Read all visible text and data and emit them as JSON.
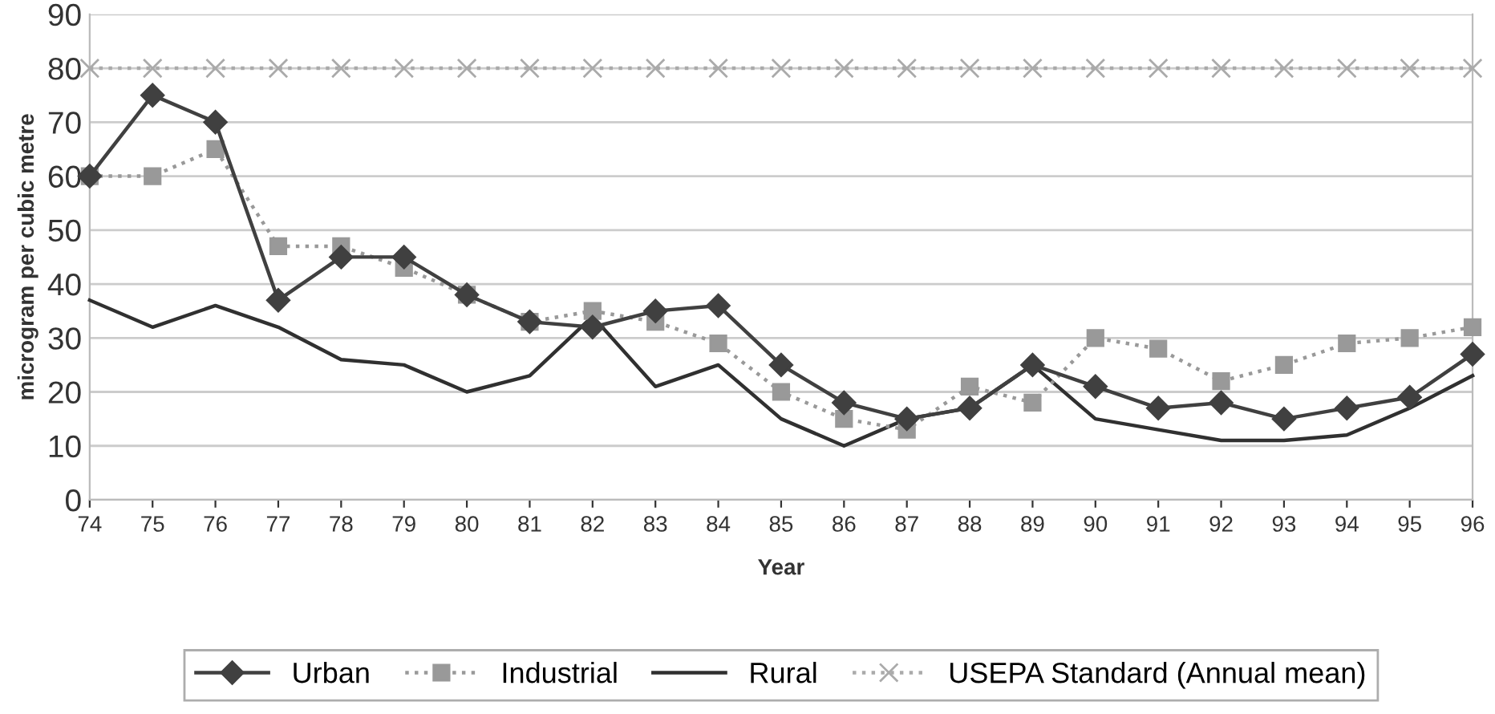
{
  "chart_data": {
    "type": "line",
    "xlabel": "Year",
    "ylabel": "microgram per cubic metre",
    "categories": [
      "74",
      "75",
      "76",
      "77",
      "78",
      "79",
      "80",
      "81",
      "82",
      "83",
      "84",
      "85",
      "86",
      "87",
      "88",
      "89",
      "90",
      "91",
      "92",
      "93",
      "94",
      "95",
      "96"
    ],
    "series": [
      {
        "name": "Urban",
        "color": "#404040",
        "marker": "diamond",
        "line_style": "solid",
        "values": [
          60,
          75,
          70,
          37,
          45,
          45,
          38,
          33,
          32,
          35,
          36,
          25,
          18,
          15,
          17,
          25,
          21,
          17,
          18,
          15,
          17,
          19,
          27
        ]
      },
      {
        "name": "Industrial",
        "color": "#999999",
        "marker": "square",
        "line_style": "dotted",
        "values": [
          60,
          60,
          65,
          47,
          47,
          43,
          38,
          33,
          35,
          33,
          29,
          20,
          15,
          13,
          21,
          18,
          30,
          28,
          22,
          25,
          29,
          30,
          32
        ]
      },
      {
        "name": "Rural",
        "color": "#303030",
        "marker": "none",
        "line_style": "solid",
        "values": [
          37,
          32,
          36,
          32,
          26,
          25,
          20,
          23,
          34,
          21,
          25,
          15,
          10,
          15,
          17,
          25,
          15,
          13,
          11,
          11,
          12,
          17,
          23
        ]
      },
      {
        "name": "USEPA Standard (Annual mean)",
        "color": "#aaaaaa",
        "marker": "cross",
        "line_style": "dotted",
        "values": [
          80,
          80,
          80,
          80,
          80,
          80,
          80,
          80,
          80,
          80,
          80,
          80,
          80,
          80,
          80,
          80,
          80,
          80,
          80,
          80,
          80,
          80,
          80
        ]
      }
    ],
    "ylim": [
      0,
      90
    ],
    "yticks": [
      0,
      10,
      20,
      30,
      40,
      50,
      60,
      70,
      80,
      90
    ],
    "grid": "y",
    "legend": "bottom"
  }
}
